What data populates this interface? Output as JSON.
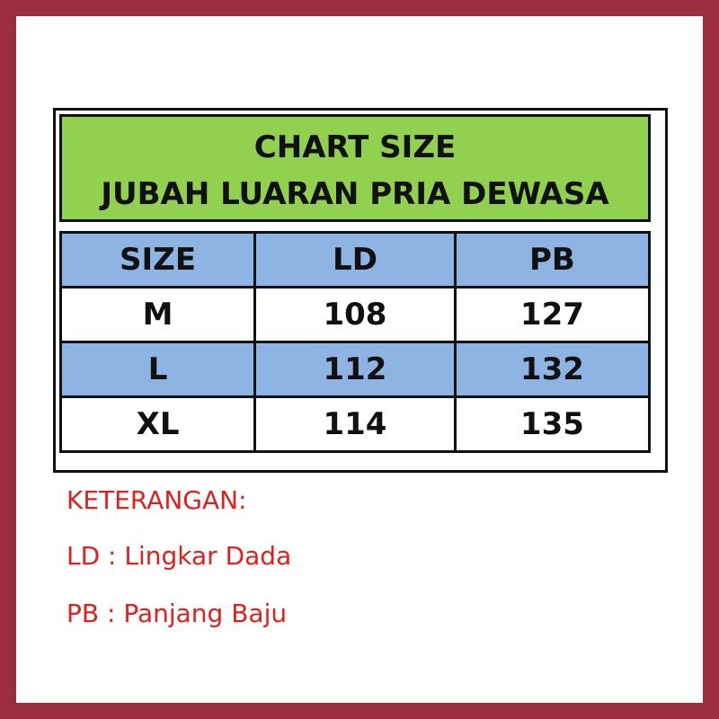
{
  "title": {
    "line1": "CHART SIZE",
    "line2": "JUBAH LUARAN PRIA DEWASA"
  },
  "table": {
    "headers": [
      "SIZE",
      "LD",
      "PB"
    ],
    "rows": [
      [
        "M",
        "108",
        "127"
      ],
      [
        "L",
        "112",
        "132"
      ],
      [
        "XL",
        "114",
        "135"
      ]
    ]
  },
  "legend": {
    "heading": "KETERANGAN:",
    "items": [
      "LD : Lingkar Dada",
      "PB : Panjang Baju"
    ]
  },
  "colors": {
    "border": "#9b2f3f",
    "title_bg": "#92d050",
    "header_bg": "#8db4e2",
    "legend_text": "#e0201c"
  }
}
